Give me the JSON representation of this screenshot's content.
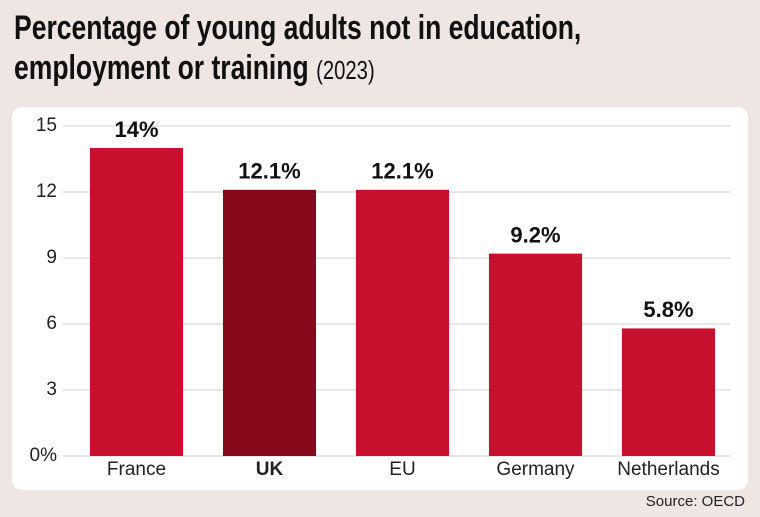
{
  "chart_data": {
    "type": "bar",
    "title": "Percentage of young adults not in education, employment or training",
    "subtitle": "(2023)",
    "categories": [
      "France",
      "UK",
      "EU",
      "Germany",
      "Netherlands"
    ],
    "values": [
      14,
      12.1,
      12.1,
      9.2,
      5.8
    ],
    "value_labels": [
      "14%",
      "12.1%",
      "12.1%",
      "9.2%",
      "5.8%"
    ],
    "colors": [
      "#c8102e",
      "#870a1c",
      "#c8102e",
      "#c8102e",
      "#c8102e"
    ],
    "ylim": [
      0,
      15
    ],
    "yticks": [
      {
        "value": 0,
        "label": "0%"
      },
      3,
      6,
      9,
      12,
      15
    ],
    "grid": true,
    "source": "Source: OECD"
  }
}
